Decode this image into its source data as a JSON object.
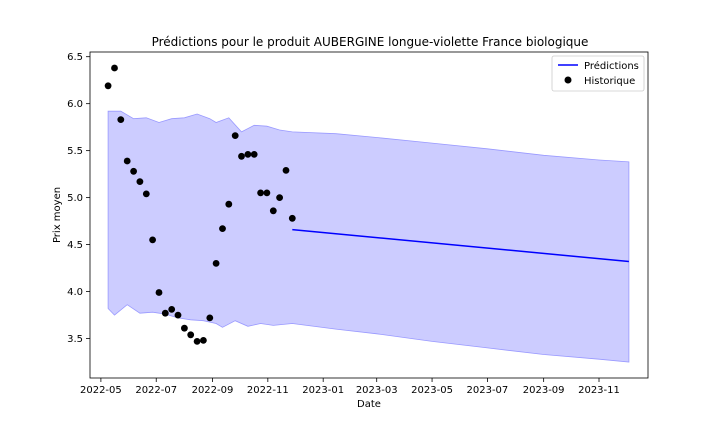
{
  "chart_data": {
    "type": "line",
    "title": "Prédictions pour le produit AUBERGINE longue-violette France biologique",
    "xlabel": "Date",
    "ylabel": "Prix moyen",
    "x_ticks": [
      "2022-05",
      "2022-07",
      "2022-09",
      "2022-11",
      "2023-01",
      "2023-03",
      "2023-05",
      "2023-07",
      "2023-09",
      "2023-11"
    ],
    "y_ticks": [
      "3.5",
      "4.0",
      "4.5",
      "5.0",
      "5.5",
      "6.0",
      "6.5"
    ],
    "ylim": [
      3.08,
      6.55
    ],
    "xlim": [
      "2022-04-19",
      "2023-12-25"
    ],
    "legend": {
      "position": "top-right",
      "entries": [
        "Prédictions",
        "Historique"
      ]
    },
    "colors": {
      "prediction_line": "#0000ff",
      "interval_fill": "#ccccff",
      "interval_edge": "#9999ff",
      "historique": "#000000"
    },
    "historique": [
      {
        "x": "2022-05-09",
        "y": 6.19
      },
      {
        "x": "2022-05-16",
        "y": 6.38
      },
      {
        "x": "2022-05-23",
        "y": 5.83
      },
      {
        "x": "2022-05-30",
        "y": 5.39
      },
      {
        "x": "2022-06-06",
        "y": 5.28
      },
      {
        "x": "2022-06-13",
        "y": 5.17
      },
      {
        "x": "2022-06-20",
        "y": 5.04
      },
      {
        "x": "2022-06-27",
        "y": 4.55
      },
      {
        "x": "2022-07-04",
        "y": 3.99
      },
      {
        "x": "2022-07-11",
        "y": 3.77
      },
      {
        "x": "2022-07-18",
        "y": 3.81
      },
      {
        "x": "2022-07-25",
        "y": 3.75
      },
      {
        "x": "2022-08-01",
        "y": 3.61
      },
      {
        "x": "2022-08-08",
        "y": 3.54
      },
      {
        "x": "2022-08-15",
        "y": 3.47
      },
      {
        "x": "2022-08-22",
        "y": 3.48
      },
      {
        "x": "2022-08-29",
        "y": 3.72
      },
      {
        "x": "2022-09-05",
        "y": 4.3
      },
      {
        "x": "2022-09-12",
        "y": 4.67
      },
      {
        "x": "2022-09-19",
        "y": 4.93
      },
      {
        "x": "2022-09-26",
        "y": 5.66
      },
      {
        "x": "2022-10-03",
        "y": 5.44
      },
      {
        "x": "2022-10-10",
        "y": 5.46
      },
      {
        "x": "2022-10-17",
        "y": 5.46
      },
      {
        "x": "2022-10-24",
        "y": 5.05
      },
      {
        "x": "2022-10-31",
        "y": 5.05
      },
      {
        "x": "2022-11-07",
        "y": 4.86
      },
      {
        "x": "2022-11-14",
        "y": 5.0
      },
      {
        "x": "2022-11-21",
        "y": 5.29
      },
      {
        "x": "2022-11-28",
        "y": 4.78
      }
    ],
    "predictions": [
      {
        "x": "2022-11-28",
        "y": 4.66
      },
      {
        "x": "2023-12-04",
        "y": 4.32
      }
    ],
    "interval_upper": [
      {
        "x": "2022-05-09",
        "y": 5.92
      },
      {
        "x": "2022-05-23",
        "y": 5.92
      },
      {
        "x": "2022-06-06",
        "y": 5.84
      },
      {
        "x": "2022-06-20",
        "y": 5.85
      },
      {
        "x": "2022-07-04",
        "y": 5.8
      },
      {
        "x": "2022-07-18",
        "y": 5.84
      },
      {
        "x": "2022-08-01",
        "y": 5.85
      },
      {
        "x": "2022-08-15",
        "y": 5.89
      },
      {
        "x": "2022-08-29",
        "y": 5.84
      },
      {
        "x": "2022-09-05",
        "y": 5.8
      },
      {
        "x": "2022-09-19",
        "y": 5.85
      },
      {
        "x": "2022-10-03",
        "y": 5.7
      },
      {
        "x": "2022-10-17",
        "y": 5.77
      },
      {
        "x": "2022-10-31",
        "y": 5.76
      },
      {
        "x": "2022-11-14",
        "y": 5.72
      },
      {
        "x": "2022-11-28",
        "y": 5.7
      },
      {
        "x": "2023-01-15",
        "y": 5.68
      },
      {
        "x": "2023-03-01",
        "y": 5.64
      },
      {
        "x": "2023-05-01",
        "y": 5.58
      },
      {
        "x": "2023-07-01",
        "y": 5.52
      },
      {
        "x": "2023-09-01",
        "y": 5.45
      },
      {
        "x": "2023-11-01",
        "y": 5.4
      },
      {
        "x": "2023-12-04",
        "y": 5.38
      }
    ],
    "interval_lower": [
      {
        "x": "2022-05-09",
        "y": 3.82
      },
      {
        "x": "2022-05-16",
        "y": 3.75
      },
      {
        "x": "2022-05-30",
        "y": 3.86
      },
      {
        "x": "2022-06-13",
        "y": 3.77
      },
      {
        "x": "2022-06-27",
        "y": 3.78
      },
      {
        "x": "2022-07-11",
        "y": 3.76
      },
      {
        "x": "2022-07-25",
        "y": 3.72
      },
      {
        "x": "2022-08-08",
        "y": 3.7
      },
      {
        "x": "2022-08-22",
        "y": 3.69
      },
      {
        "x": "2022-09-05",
        "y": 3.66
      },
      {
        "x": "2022-09-12",
        "y": 3.62
      },
      {
        "x": "2022-09-26",
        "y": 3.69
      },
      {
        "x": "2022-10-10",
        "y": 3.63
      },
      {
        "x": "2022-10-24",
        "y": 3.66
      },
      {
        "x": "2022-11-07",
        "y": 3.64
      },
      {
        "x": "2022-11-28",
        "y": 3.66
      },
      {
        "x": "2023-01-15",
        "y": 3.6
      },
      {
        "x": "2023-03-01",
        "y": 3.55
      },
      {
        "x": "2023-05-01",
        "y": 3.47
      },
      {
        "x": "2023-07-01",
        "y": 3.4
      },
      {
        "x": "2023-09-01",
        "y": 3.33
      },
      {
        "x": "2023-11-01",
        "y": 3.28
      },
      {
        "x": "2023-12-04",
        "y": 3.25
      }
    ]
  }
}
